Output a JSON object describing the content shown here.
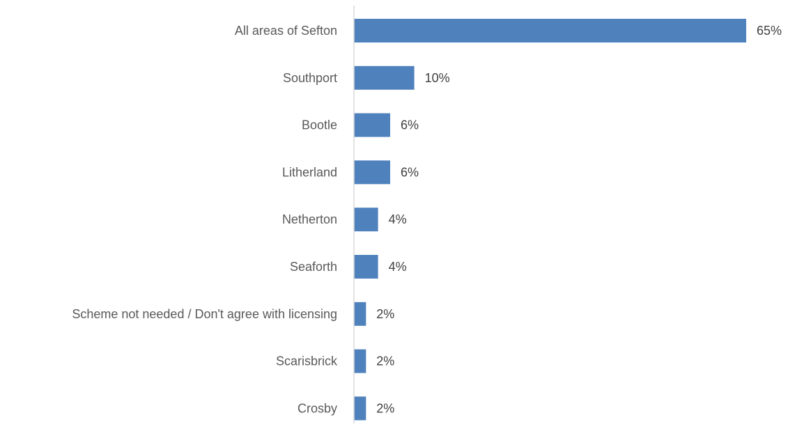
{
  "chart_data": {
    "type": "bar",
    "orientation": "horizontal",
    "categories": [
      "All areas of Sefton",
      "Southport",
      "Bootle",
      "Litherland",
      "Netherton",
      "Seaforth",
      "Scheme not needed / Don't agree with licensing",
      "Scarisbrick",
      "Crosby"
    ],
    "values": [
      65,
      10,
      6,
      6,
      4,
      4,
      2,
      2,
      2
    ],
    "value_labels": [
      "65%",
      "10%",
      "6%",
      "6%",
      "4%",
      "4%",
      "2%",
      "2%",
      "2%"
    ],
    "unit": "%",
    "xlim": [
      0,
      65
    ],
    "grid": false,
    "legend": "none",
    "title": "",
    "xlabel": "",
    "ylabel": "",
    "colors": {
      "bar": "#4f81bd",
      "axis": "#d9d9d9",
      "category_text": "#595959",
      "value_text": "#404040"
    }
  }
}
